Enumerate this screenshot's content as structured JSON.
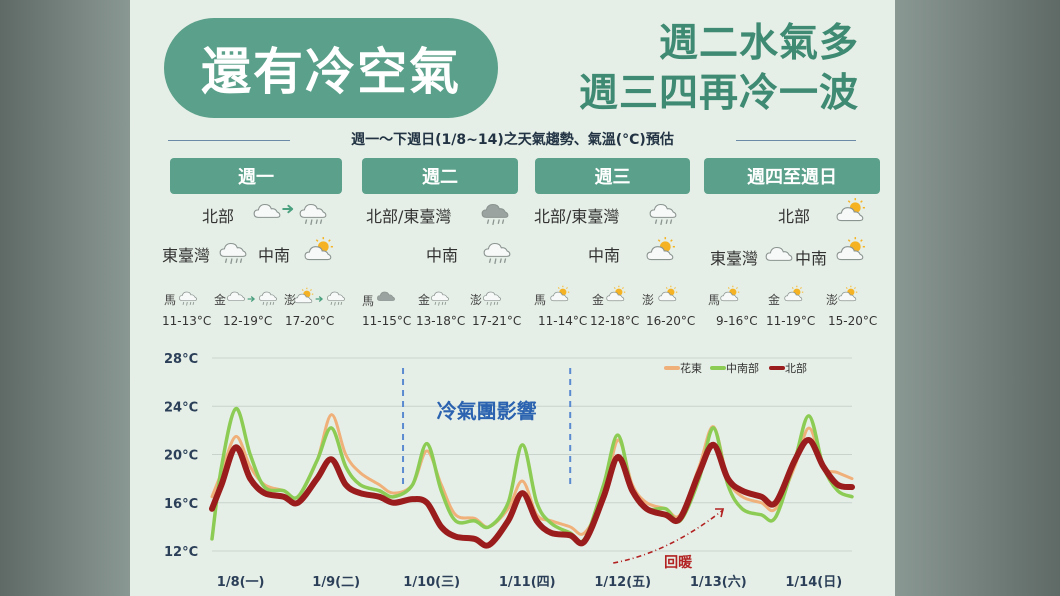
{
  "title": "還有冷空氣",
  "headline": [
    "週二水氣多",
    "週三四再冷一波"
  ],
  "subtitle": "週一～下週日(1/8~14)之天氣趨勢、氣溫(°C)預估",
  "days": [
    {
      "label": "週一",
      "regions": [
        {
          "name": "北部",
          "icons": [
            "cloud-icon",
            "arrow-right-icon",
            "cloud-rain-icon"
          ]
        },
        {
          "name": "東臺灣",
          "icons": [
            "cloud-rain-icon"
          ]
        },
        {
          "name": "中南",
          "icons": [
            "sun-cloud-icon"
          ]
        }
      ],
      "islands": [
        {
          "name": "馬",
          "icons": [
            "cloud-rain-icon"
          ],
          "temp": "11-13°C"
        },
        {
          "name": "金",
          "icons": [
            "cloud-icon",
            "arrow-right-icon",
            "cloud-rain-icon"
          ],
          "temp": "12-19°C"
        },
        {
          "name": "澎",
          "icons": [
            "sun-cloud-icon",
            "arrow-right-icon",
            "cloud-rain-icon"
          ],
          "temp": "17-20°C"
        }
      ]
    },
    {
      "label": "週二",
      "regions": [
        {
          "name": "北部/東臺灣",
          "icons": [
            "dark-cloud-rain-icon"
          ]
        },
        {
          "name": "中南",
          "icons": [
            "cloud-rain-icon"
          ]
        }
      ],
      "islands": [
        {
          "name": "馬",
          "icons": [
            "dark-cloud-icon"
          ],
          "temp": "11-15°C"
        },
        {
          "name": "金",
          "icons": [
            "cloud-rain-icon"
          ],
          "temp": "13-18°C"
        },
        {
          "name": "澎",
          "icons": [
            "cloud-rain-icon"
          ],
          "temp": "17-21°C"
        }
      ]
    },
    {
      "label": "週三",
      "regions": [
        {
          "name": "北部/東臺灣",
          "icons": [
            "cloud-rain-icon"
          ]
        },
        {
          "name": "中南",
          "icons": [
            "sun-cloud-icon"
          ]
        }
      ],
      "islands": [
        {
          "name": "馬",
          "icons": [
            "sun-cloud-icon"
          ],
          "temp": "11-14°C"
        },
        {
          "name": "金",
          "icons": [
            "sun-cloud-icon"
          ],
          "temp": "12-18°C"
        },
        {
          "name": "澎",
          "icons": [
            "sun-cloud-icon"
          ],
          "temp": "16-20°C"
        }
      ]
    },
    {
      "label": "週四至週日",
      "regions": [
        {
          "name": "北部",
          "icons": [
            "sun-cloud-icon"
          ]
        },
        {
          "name": "東臺灣",
          "icons": [
            "cloud-icon"
          ]
        },
        {
          "name": "中南",
          "icons": [
            "sun-cloud-icon"
          ]
        }
      ],
      "islands": [
        {
          "name": "馬",
          "icons": [
            "sun-cloud-icon"
          ],
          "temp": "9-16°C"
        },
        {
          "name": "金",
          "icons": [
            "sun-cloud-icon"
          ],
          "temp": "11-19°C"
        },
        {
          "name": "澎",
          "icons": [
            "sun-cloud-icon"
          ],
          "temp": "15-20°C"
        }
      ]
    }
  ],
  "colors": {
    "accent": "#5aa08a",
    "north": "#9a1c1c",
    "central_south": "#8ccc55",
    "hualien_taitung": "#f0b07a",
    "annotation": "#2b63b0",
    "warming": "#b22222"
  },
  "chart_data": {
    "type": "line",
    "ylabel": "",
    "ylim": [
      12,
      28
    ],
    "yticks": [
      "28°C",
      "24°C",
      "20°C",
      "16°C",
      "12°C"
    ],
    "ytick_values": [
      28,
      24,
      20,
      16,
      12
    ],
    "categories": [
      "1/8(一)",
      "1/9(二)",
      "1/10(三)",
      "1/11(四)",
      "1/12(五)",
      "1/13(六)",
      "1/14(日)"
    ],
    "x": [
      0,
      0.1,
      0.25,
      0.4,
      0.55,
      0.75,
      0.9,
      1.1,
      1.25,
      1.4,
      1.55,
      1.75,
      1.9,
      2.1,
      2.25,
      2.4,
      2.55,
      2.75,
      2.9,
      3.1,
      3.25,
      3.4,
      3.55,
      3.75,
      3.9,
      4.1,
      4.25,
      4.4,
      4.55,
      4.75,
      4.9,
      5.1,
      5.25,
      5.4,
      5.55,
      5.75,
      5.9,
      6.1,
      6.25,
      6.4,
      6.55,
      6.7
    ],
    "series": [
      {
        "name": "花東",
        "color": "#f0b07a",
        "values": [
          16.5,
          18.5,
          21.5,
          19,
          17.5,
          17,
          16.5,
          19.5,
          23.3,
          20,
          18.5,
          17.5,
          16.8,
          17.5,
          20.3,
          17.5,
          15,
          14.7,
          14,
          15.5,
          17.8,
          15,
          14.5,
          14,
          13.5,
          16.5,
          21.2,
          17.5,
          16,
          15.5,
          15,
          19,
          22.3,
          18,
          16.5,
          16,
          15.5,
          19,
          22.2,
          19,
          18.5,
          18
        ]
      },
      {
        "name": "中南部",
        "color": "#8ccc55",
        "values": [
          13,
          19,
          23.8,
          20,
          17.3,
          17,
          16.5,
          19.5,
          22.2,
          19,
          17.5,
          17,
          16.5,
          17.5,
          20.9,
          17,
          14.5,
          14.5,
          14,
          16,
          20.8,
          16,
          14.3,
          13.5,
          13,
          17.5,
          21.6,
          17,
          15.5,
          15.5,
          14.5,
          18,
          22.2,
          17.5,
          15.5,
          15,
          14.8,
          19.5,
          23.2,
          19,
          17,
          16.5
        ]
      },
      {
        "name": "北部",
        "color": "#9a1c1c",
        "values": [
          15.5,
          17.5,
          20.6,
          18,
          16.8,
          16.5,
          16,
          18,
          19.6,
          17.5,
          16.8,
          16.5,
          16,
          16.3,
          16,
          14,
          13.2,
          13,
          12.5,
          14.5,
          16.8,
          14.5,
          13.5,
          13.3,
          12.8,
          16.5,
          19.8,
          17,
          15.5,
          15,
          14.7,
          18.5,
          20.8,
          18,
          17,
          16.5,
          16,
          19.5,
          21.2,
          19,
          17.5,
          17.3
        ]
      }
    ],
    "legend_position": "top-right",
    "grid": true,
    "annotations": [
      {
        "text": "冷氣團影響",
        "x_start": 2.0,
        "x_end": 3.75
      },
      {
        "text": "回暖",
        "x_start": 4.2,
        "x_end": 5.35
      }
    ]
  }
}
